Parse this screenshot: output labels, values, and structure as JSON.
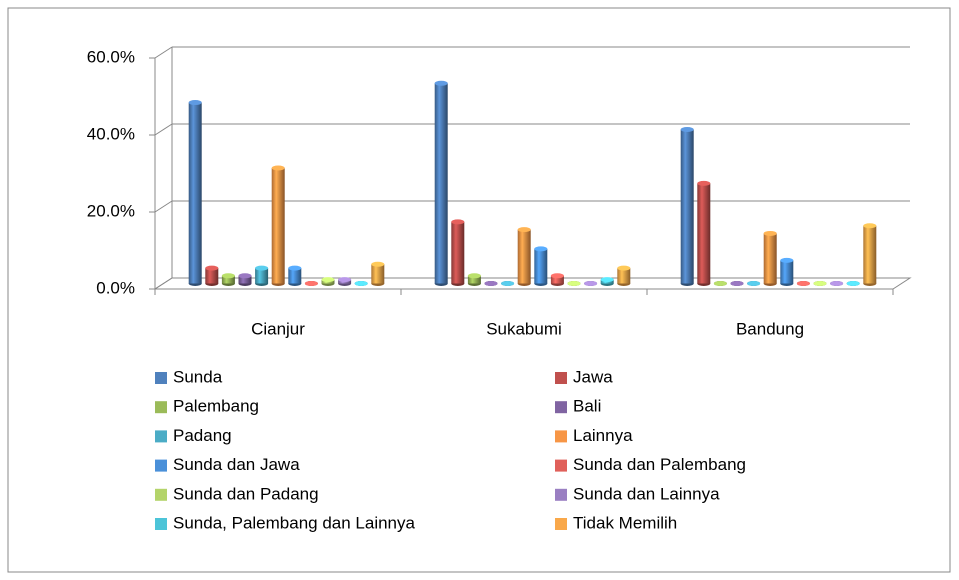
{
  "chart_data": {
    "type": "bar",
    "categories": [
      "Cianjur",
      "Sukabumi",
      "Bandung"
    ],
    "series": [
      {
        "name": "Sunda",
        "color": "#4f81bd",
        "values": [
          47,
          52,
          40
        ]
      },
      {
        "name": "Jawa",
        "color": "#c0504d",
        "values": [
          4,
          16,
          26
        ]
      },
      {
        "name": "Palembang",
        "color": "#9bbb59",
        "values": [
          2,
          2,
          0
        ]
      },
      {
        "name": "Bali",
        "color": "#8064a2",
        "values": [
          2,
          0,
          0
        ]
      },
      {
        "name": "Padang",
        "color": "#4bacc6",
        "values": [
          4,
          0,
          0
        ]
      },
      {
        "name": "Lainnya",
        "color": "#f79646",
        "values": [
          30,
          14,
          13
        ]
      },
      {
        "name": "Sunda dan Jawa",
        "color": "#4a90d9",
        "values": [
          4,
          9,
          6
        ]
      },
      {
        "name": "Sunda dan Palembang",
        "color": "#e0605a",
        "values": [
          0,
          2,
          0
        ]
      },
      {
        "name": "Sunda dan Padang",
        "color": "#b4d46a",
        "values": [
          1,
          0,
          0
        ]
      },
      {
        "name": "Sunda dan Lainnya",
        "color": "#9a7fc2",
        "values": [
          1,
          0,
          0
        ]
      },
      {
        "name": "Sunda, Palembang dan Lainnya",
        "color": "#4cc4d8",
        "values": [
          0,
          1,
          0
        ]
      },
      {
        "name": "Tidak Memilih",
        "color": "#f9a84a",
        "values": [
          5,
          4,
          15
        ]
      }
    ],
    "ylim": [
      0,
      60
    ],
    "yticks": [
      {
        "value": 0,
        "label": "0.0%"
      },
      {
        "value": 20,
        "label": "20.0%"
      },
      {
        "value": 40,
        "label": "40.0%"
      },
      {
        "value": 60,
        "label": "60.0%"
      }
    ],
    "grid": true
  }
}
